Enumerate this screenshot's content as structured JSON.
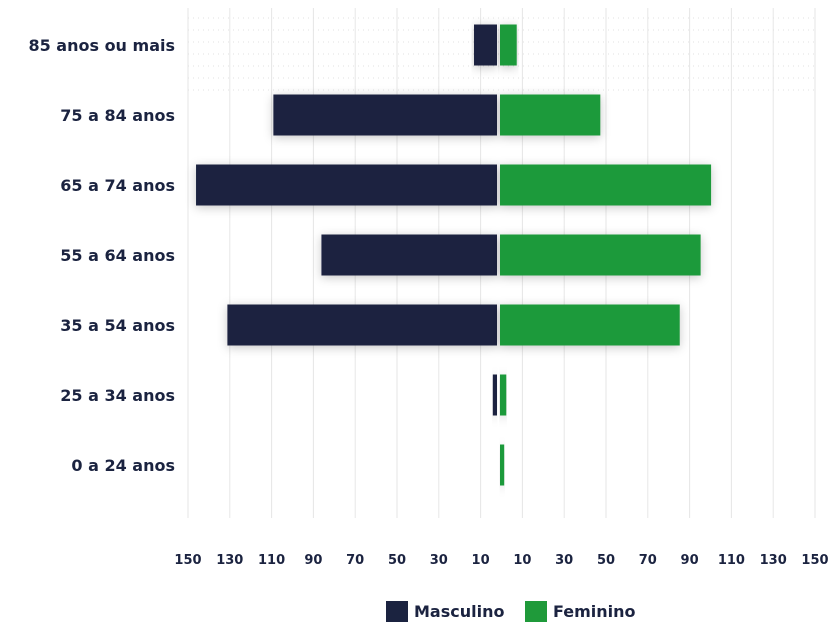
{
  "chart_data": {
    "type": "bar",
    "orientation": "horizontal-diverging",
    "categories": [
      "85 anos ou mais",
      "75 a 84 anos",
      "65 a 74 anos",
      "55 a 64 anos",
      "35 a 54 anos",
      "25 a 34 anos",
      "0 a 24 anos"
    ],
    "series": [
      {
        "name": "Masculino",
        "color": "#1b2340",
        "values": [
          11,
          107,
          144,
          84,
          129,
          2,
          0
        ]
      },
      {
        "name": "Feminino",
        "color": "#1f9a3a",
        "values": [
          8,
          48,
          101,
          96,
          86,
          3,
          2
        ]
      }
    ],
    "xaxis": {
      "tick_values": [
        -150,
        -130,
        -110,
        -90,
        -70,
        -50,
        -30,
        -10,
        10,
        30,
        50,
        70,
        90,
        110,
        130,
        150
      ],
      "tick_labels": [
        "150",
        "130",
        "110",
        "90",
        "70",
        "50",
        "30",
        "10",
        "10",
        "30",
        "50",
        "70",
        "90",
        "110",
        "130",
        "150"
      ]
    },
    "xlim": [
      -150,
      150
    ],
    "grid": true,
    "legend_position": "bottom",
    "legend": [
      "Masculino",
      "Feminino"
    ]
  }
}
